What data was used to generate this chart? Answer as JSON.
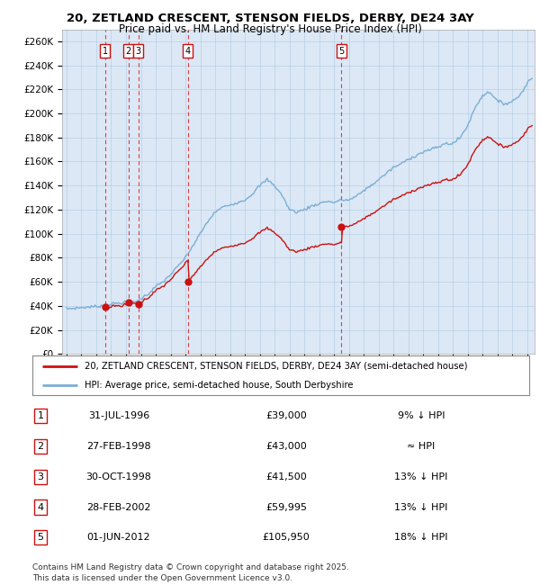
{
  "title_line1": "20, ZETLAND CRESCENT, STENSON FIELDS, DERBY, DE24 3AY",
  "title_line2": "Price paid vs. HM Land Registry's House Price Index (HPI)",
  "xlim_years": [
    1993.7,
    2025.5
  ],
  "ylim": [
    0,
    270000
  ],
  "yticks": [
    0,
    20000,
    40000,
    60000,
    80000,
    100000,
    120000,
    140000,
    160000,
    180000,
    200000,
    220000,
    240000,
    260000
  ],
  "ytick_labels": [
    "£0",
    "£20K",
    "£40K",
    "£60K",
    "£80K",
    "£100K",
    "£120K",
    "£140K",
    "£160K",
    "£180K",
    "£200K",
    "£220K",
    "£240K",
    "£260K"
  ],
  "sale_prices": [
    39000,
    43000,
    41500,
    59995,
    105950
  ],
  "sale_numbers": [
    1,
    2,
    3,
    4,
    5
  ],
  "legend_property": "20, ZETLAND CRESCENT, STENSON FIELDS, DERBY, DE24 3AY (semi-detached house)",
  "legend_hpi": "HPI: Average price, semi-detached house, South Derbyshire",
  "table_rows": [
    {
      "num": 1,
      "date": "31-JUL-1996",
      "price": "£39,000",
      "hpi": "9% ↓ HPI"
    },
    {
      "num": 2,
      "date": "27-FEB-1998",
      "price": "£43,000",
      "hpi": "≈ HPI"
    },
    {
      "num": 3,
      "date": "30-OCT-1998",
      "price": "£41,500",
      "hpi": "13% ↓ HPI"
    },
    {
      "num": 4,
      "date": "28-FEB-2002",
      "price": "£59,995",
      "hpi": "13% ↓ HPI"
    },
    {
      "num": 5,
      "date": "01-JUN-2012",
      "price": "£105,950",
      "hpi": "18% ↓ HPI"
    }
  ],
  "footer": "Contains HM Land Registry data © Crown copyright and database right 2025.\nThis data is licensed under the Open Government Licence v3.0.",
  "hpi_line_color": "#7aaed6",
  "prop_line_color": "#cc1111",
  "chart_bg": "#dce8f5",
  "grid_color": "#b8cfe8"
}
